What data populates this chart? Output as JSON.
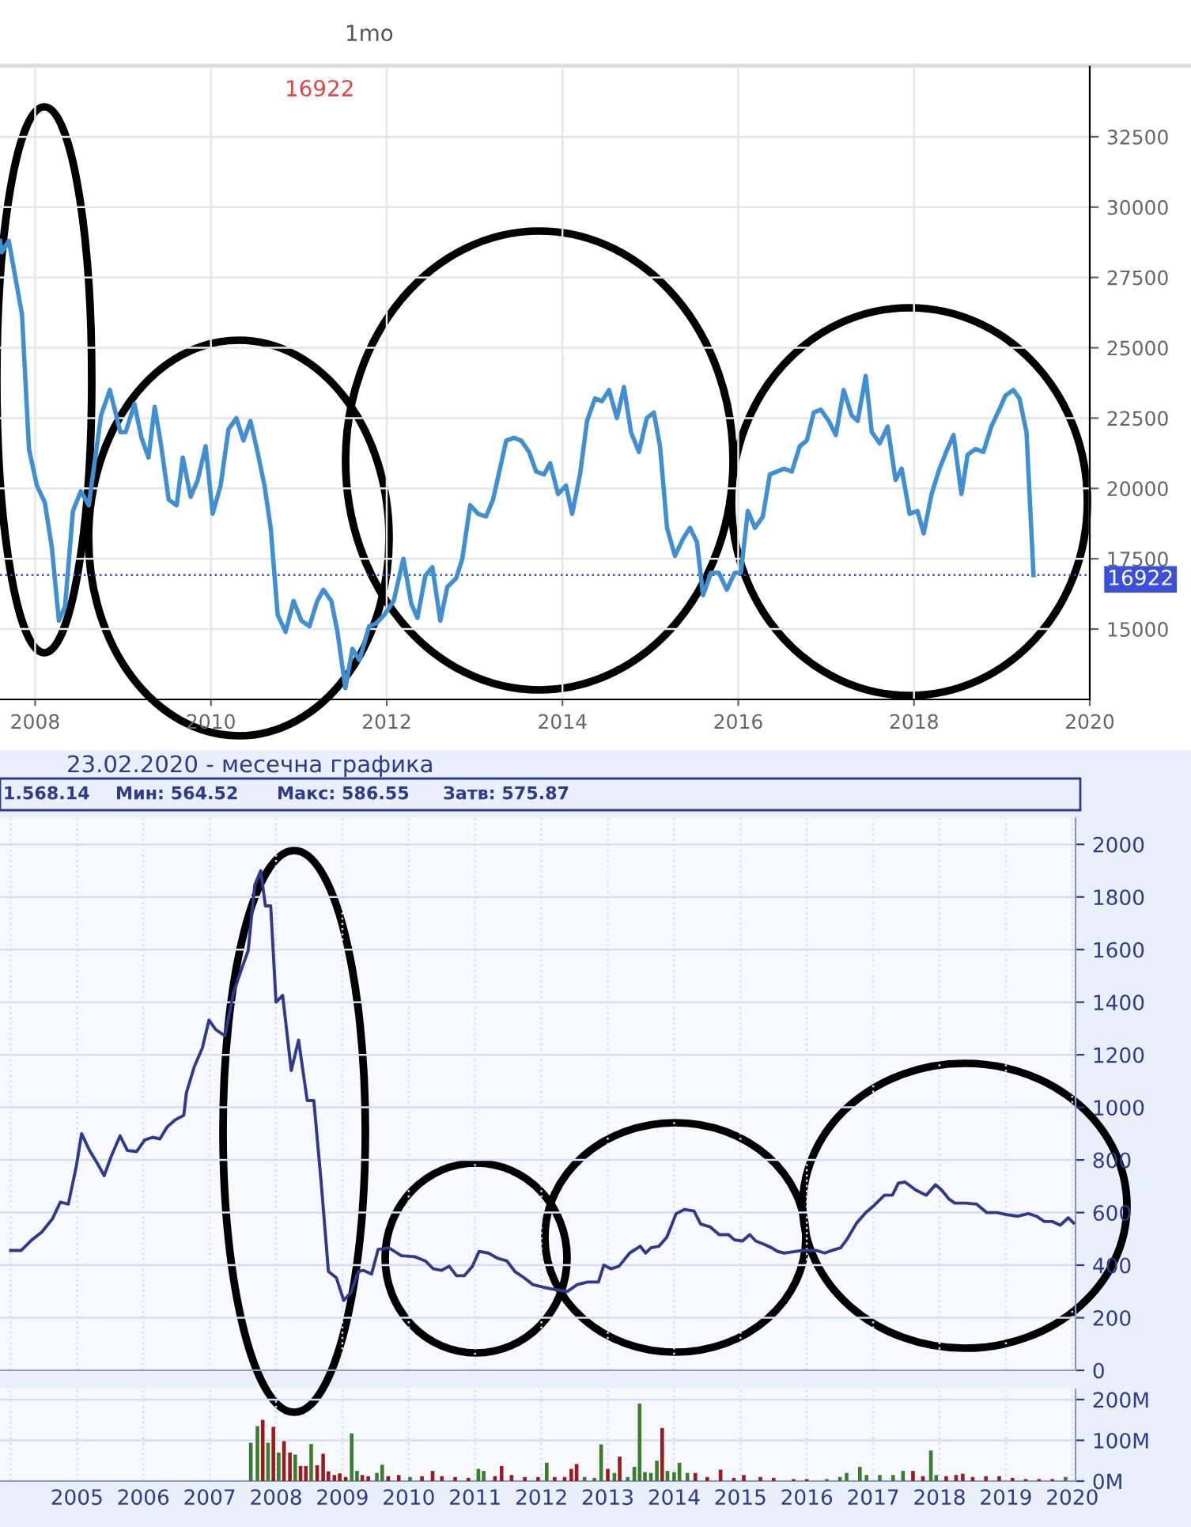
{
  "chart_data": [
    {
      "type": "line",
      "xlim": [
        2007.6,
        2020
      ],
      "ylim": [
        12500,
        35000
      ],
      "xticks": [
        2008,
        2010,
        2012,
        2014,
        2016,
        2018,
        2020
      ],
      "yticks": [
        15000,
        17500,
        20000,
        22500,
        25000,
        27500,
        30000,
        32500
      ],
      "grid": true,
      "legend": false,
      "annotations": [
        "1mo",
        "16922"
      ],
      "ref_lines": [
        {
          "axis": "y",
          "value": 16922,
          "label": "16922",
          "color": "#3b4fd8",
          "line_style": "dotted"
        }
      ],
      "series": [
        {
          "color": "#3f8fd2",
          "x": [
            2007.6,
            2007.62,
            2007.7,
            2007.85,
            2007.93,
            2008.02,
            2008.11,
            2008.19,
            2008.27,
            2008.34,
            2008.43,
            2008.52,
            2008.61,
            2008.75,
            2008.85,
            2008.97,
            2009.03,
            2009.13,
            2009.21,
            2009.29,
            2009.36,
            2009.43,
            2009.52,
            2009.61,
            2009.68,
            2009.77,
            2009.85,
            2009.94,
            2010.02,
            2010.11,
            2010.2,
            2010.29,
            2010.37,
            2010.45,
            2010.53,
            2010.61,
            2010.68,
            2010.76,
            2010.85,
            2010.94,
            2011.03,
            2011.12,
            2011.21,
            2011.28,
            2011.37,
            2011.44,
            2011.53,
            2011.61,
            2011.69,
            2011.8,
            2011.88,
            2011.97,
            2012.08,
            2012.19,
            2012.28,
            2012.35,
            2012.44,
            2012.52,
            2012.61,
            2012.69,
            2012.79,
            2012.86,
            2012.95,
            2013.04,
            2013.13,
            2013.21,
            2013.36,
            2013.45,
            2013.53,
            2013.62,
            2013.7,
            2013.79,
            2013.86,
            2013.95,
            2014.04,
            2014.11,
            2014.2,
            2014.28,
            2014.37,
            2014.45,
            2014.53,
            2014.62,
            2014.7,
            2014.78,
            2014.87,
            2014.96,
            2015.04,
            2015.11,
            2015.19,
            2015.28,
            2015.37,
            2015.45,
            2015.53,
            2015.6,
            2015.69,
            2015.78,
            2015.87,
            2015.96,
            2016.03,
            2016.11,
            2016.19,
            2016.28,
            2016.36,
            2016.52,
            2016.61,
            2016.7,
            2016.78,
            2016.86,
            2016.94,
            2017.03,
            2017.11,
            2017.2,
            2017.29,
            2017.36,
            2017.45,
            2017.52,
            2017.61,
            2017.7,
            2017.79,
            2017.86,
            2017.95,
            2018.04,
            2018.11,
            2018.2,
            2018.29,
            2018.38,
            2018.45,
            2018.54,
            2018.61,
            2018.7,
            2018.79,
            2018.88,
            2018.97,
            2019.04,
            2019.13,
            2019.2,
            2019.28,
            2019.36
          ],
          "values": [
            28800,
            28400,
            28800,
            26200,
            21400,
            20100,
            19500,
            17900,
            15300,
            15800,
            19200,
            19900,
            19400,
            22600,
            23500,
            22000,
            22000,
            23000,
            21800,
            21100,
            22900,
            21600,
            19600,
            19400,
            21100,
            19700,
            20300,
            21500,
            19100,
            20100,
            22100,
            22500,
            21700,
            22400,
            21300,
            20100,
            18600,
            15500,
            14900,
            16000,
            15300,
            15100,
            16000,
            16400,
            16000,
            14900,
            12900,
            14300,
            13900,
            15100,
            15200,
            15500,
            16000,
            17500,
            15900,
            15400,
            16900,
            17200,
            15300,
            16500,
            16800,
            17500,
            19400,
            19100,
            19000,
            19600,
            21700,
            21800,
            21700,
            21300,
            20600,
            20500,
            20900,
            19800,
            20100,
            19100,
            20500,
            22400,
            23200,
            23100,
            23500,
            22500,
            23600,
            22000,
            21300,
            22500,
            22700,
            21500,
            18600,
            17600,
            18200,
            18600,
            18100,
            16200,
            17000,
            17000,
            16400,
            17000,
            17000,
            19200,
            18600,
            19000,
            20500,
            20700,
            20600,
            21500,
            21700,
            22700,
            22800,
            22400,
            21900,
            23500,
            22600,
            22400,
            24000,
            22000,
            21600,
            22200,
            20300,
            20700,
            19100,
            19200,
            18400,
            19800,
            20700,
            21400,
            21900,
            19800,
            21200,
            21400,
            21300,
            22200,
            22800,
            23300,
            23500,
            23200,
            22000,
            16922
          ]
        }
      ]
    },
    {
      "type": "line",
      "xlim": [
        2003.84,
        2020.05
      ],
      "ylim": [
        0,
        2100
      ],
      "xticks": [
        2004,
        2005,
        2006,
        2007,
        2008,
        2009,
        2010,
        2011,
        2012,
        2013,
        2014,
        2015,
        2016,
        2017,
        2018,
        2019,
        2020
      ],
      "yticks": [
        0,
        200,
        400,
        600,
        800,
        1000,
        1200,
        1400,
        1600,
        1800,
        2000
      ],
      "grid": true,
      "legend": false,
      "tick_labels": "y",
      "subtitle": "23.02.2020 - месечна графика",
      "annotations": [
        "1.568.14",
        "Мин: 564.52",
        "Макс: 586.55",
        "Затв: 575.87"
      ],
      "series": [
        {
          "color": "#2e3a8c",
          "x": [
            2004.0,
            2004.16,
            2004.32,
            2004.47,
            2004.63,
            2004.75,
            2004.87,
            2004.99,
            2005.07,
            2005.19,
            2005.31,
            2005.41,
            2005.52,
            2005.65,
            2005.76,
            2005.9,
            2006.02,
            2006.14,
            2006.25,
            2006.36,
            2006.48,
            2006.61,
            2006.65,
            2006.77,
            2006.89,
            2006.99,
            2007.09,
            2007.23,
            2007.36,
            2007.48,
            2007.58,
            2007.68,
            2007.77,
            2007.84,
            2007.92,
            2008.0,
            2008.1,
            2008.23,
            2008.34,
            2008.47,
            2008.57,
            2008.68,
            2008.79,
            2008.91,
            2009.02,
            2009.13,
            2009.24,
            2009.32,
            2009.44,
            2009.54,
            2009.7,
            2009.89,
            2010.09,
            2010.25,
            2010.37,
            2010.49,
            2010.61,
            2010.72,
            2010.84,
            2010.96,
            2011.06,
            2011.2,
            2011.34,
            2011.48,
            2011.6,
            2011.74,
            2011.87,
            2012.03,
            2012.23,
            2012.39,
            2012.54,
            2012.7,
            2012.86,
            2012.94,
            2013.05,
            2013.17,
            2013.33,
            2013.49,
            2013.57,
            2013.65,
            2013.77,
            2013.89,
            2014.03,
            2014.16,
            2014.3,
            2014.4,
            2014.54,
            2014.68,
            2014.82,
            2014.91,
            2015.03,
            2015.14,
            2015.23,
            2015.35,
            2015.47,
            2015.56,
            2015.66,
            2015.78,
            2015.94,
            2016.14,
            2016.27,
            2016.38,
            2016.51,
            2016.61,
            2016.75,
            2016.89,
            2017.01,
            2017.17,
            2017.29,
            2017.38,
            2017.48,
            2017.64,
            2017.8,
            2017.94,
            2018.03,
            2018.14,
            2018.23,
            2018.39,
            2018.56,
            2018.71,
            2018.87,
            2019.02,
            2019.18,
            2019.34,
            2019.46,
            2019.58,
            2019.7,
            2019.82,
            2019.94,
            2020.02
          ],
          "values": [
            456,
            456,
            496,
            526,
            576,
            640,
            632,
            776,
            900,
            836,
            786,
            740,
            816,
            892,
            836,
            832,
            876,
            886,
            880,
            926,
            952,
            970,
            1056,
            1156,
            1226,
            1332,
            1296,
            1272,
            1436,
            1526,
            1596,
            1846,
            1900,
            1766,
            1766,
            1400,
            1426,
            1140,
            1256,
            1026,
            1026,
            716,
            376,
            352,
            266,
            296,
            376,
            380,
            366,
            460,
            466,
            436,
            432,
            416,
            386,
            380,
            396,
            360,
            360,
            396,
            452,
            446,
            426,
            416,
            376,
            352,
            326,
            316,
            306,
            300,
            326,
            336,
            336,
            400,
            386,
            396,
            446,
            472,
            446,
            466,
            472,
            506,
            596,
            612,
            606,
            556,
            546,
            516,
            516,
            496,
            492,
            516,
            492,
            480,
            466,
            452,
            446,
            450,
            456,
            456,
            446,
            456,
            466,
            500,
            560,
            600,
            626,
            666,
            666,
            712,
            716,
            686,
            666,
            706,
            686,
            652,
            636,
            636,
            632,
            600,
            600,
            592,
            586,
            596,
            586,
            566,
            566,
            552,
            580,
            560
          ]
        }
      ]
    },
    {
      "type": "bar",
      "xlim": [
        2003.84,
        2020.05
      ],
      "ylim": [
        0,
        225
      ],
      "xticks": [
        {
          "value": 2004,
          "label": null
        },
        2005,
        2006,
        2007,
        2008,
        2009,
        2010,
        2011,
        2012,
        2013,
        2014,
        2015,
        2016,
        2017,
        2018,
        2019,
        2020
      ],
      "yticks": [
        {
          "value": 0,
          "label": "0M"
        },
        {
          "value": 100,
          "label": "100M"
        },
        {
          "value": 200,
          "label": "200M"
        }
      ],
      "grid": true,
      "legend": false,
      "series": [
        {
          "x": [
            2007.62,
            2007.72,
            2007.8,
            2007.88,
            2007.96,
            2008.04,
            2008.12,
            2008.21,
            2008.29,
            2008.37,
            2008.45,
            2008.53,
            2008.62,
            2008.71,
            2008.79,
            2008.88,
            2008.96,
            2009.05,
            2009.14,
            2009.22,
            2009.3,
            2009.39,
            2009.52,
            2009.6,
            2009.69,
            2009.85,
            2010.02,
            2010.2,
            2010.36,
            2010.5,
            2010.7,
            2010.9,
            2011.05,
            2011.13,
            2011.3,
            2011.4,
            2011.55,
            2011.75,
            2011.95,
            2012.08,
            2012.2,
            2012.35,
            2012.45,
            2012.53,
            2012.65,
            2012.8,
            2012.9,
            2013.0,
            2013.1,
            2013.18,
            2013.3,
            2013.4,
            2013.48,
            2013.56,
            2013.65,
            2013.74,
            2013.82,
            2013.9,
            2014.0,
            2014.08,
            2014.2,
            2014.32,
            2014.5,
            2014.7,
            2014.9,
            2015.05,
            2015.3,
            2015.5,
            2015.8,
            2016.0,
            2016.3,
            2016.5,
            2016.6,
            2016.8,
            2016.9,
            2017.1,
            2017.3,
            2017.45,
            2017.6,
            2017.75,
            2017.87,
            2017.95,
            2018.1,
            2018.25,
            2018.35,
            2018.5,
            2018.7,
            2018.9,
            2019.1,
            2019.3,
            2019.5,
            2019.7,
            2019.9
          ],
          "values": [
            94,
            135,
            150,
            94,
            133,
            70,
            98,
            70,
            65,
            37,
            37,
            91,
            39,
            67,
            24,
            15,
            19,
            10,
            117,
            25,
            15,
            12,
            20,
            40,
            12,
            15,
            10,
            12,
            25,
            12,
            10,
            8,
            30,
            25,
            12,
            37,
            15,
            10,
            10,
            45,
            10,
            10,
            30,
            42,
            10,
            8,
            90,
            30,
            20,
            60,
            10,
            35,
            190,
            22,
            20,
            50,
            130,
            25,
            22,
            45,
            20,
            20,
            10,
            28,
            8,
            15,
            10,
            8,
            5,
            5,
            5,
            10,
            20,
            35,
            15,
            15,
            15,
            25,
            25,
            12,
            75,
            15,
            12,
            15,
            18,
            10,
            12,
            12,
            8,
            5,
            5,
            5,
            10
          ],
          "colors": [
            "#3a7d2c",
            "#3a7d2c",
            "#9b1c1c",
            "#3a7d2c",
            "#9b1c1c",
            "#3a7d2c",
            "#9b1c1c",
            "#9b1c1c",
            "#3a7d2c",
            "#9b1c1c",
            "#9b1c1c",
            "#3a7d2c",
            "#9b1c1c",
            "#9b1c1c",
            "#9b1c1c",
            "#9b1c1c",
            "#9b1c1c",
            "#9b1c1c",
            "#3a7d2c",
            "#3a7d2c",
            "#9b1c1c",
            "#9b1c1c",
            "#3a7d2c",
            "#3a7d2c",
            "#9b1c1c",
            "#9b1c1c",
            "#3a7d2c",
            "#9b1c1c",
            "#9b1c1c",
            "#9b1c1c",
            "#9b1c1c",
            "#9b1c1c",
            "#3a7d2c",
            "#3a7d2c",
            "#9b1c1c",
            "#9b1c1c",
            "#9b1c1c",
            "#9b1c1c",
            "#9b1c1c",
            "#3a7d2c",
            "#9b1c1c",
            "#9b1c1c",
            "#9b1c1c",
            "#9b1c1c",
            "#3a7d2c",
            "#3a7d2c",
            "#3a7d2c",
            "#9b1c1c",
            "#3a7d2c",
            "#9b1c1c",
            "#3a7d2c",
            "#3a7d2c",
            "#3a7d2c",
            "#3a7d2c",
            "#3a7d2c",
            "#3a7d2c",
            "#9b1c1c",
            "#3a7d2c",
            "#3a7d2c",
            "#3a7d2c",
            "#3a7d2c",
            "#9b1c1c",
            "#9b1c1c",
            "#9b1c1c",
            "#9b1c1c",
            "#9b1c1c",
            "#9b1c1c",
            "#9b1c1c",
            "#9b1c1c",
            "#9b1c1c",
            "#3a7d2c",
            "#3a7d2c",
            "#3a7d2c",
            "#3a7d2c",
            "#3a7d2c",
            "#3a7d2c",
            "#3a7d2c",
            "#3a7d2c",
            "#9b1c1c",
            "#9b1c1c",
            "#3a7d2c",
            "#3a7d2c",
            "#9b1c1c",
            "#9b1c1c",
            "#9b1c1c",
            "#9b1c1c",
            "#9b1c1c",
            "#9b1c1c",
            "#9b1c1c",
            "#9b1c1c",
            "#9b1c1c",
            "#9b1c1c",
            "#3a7d2c"
          ]
        }
      ]
    }
  ]
}
